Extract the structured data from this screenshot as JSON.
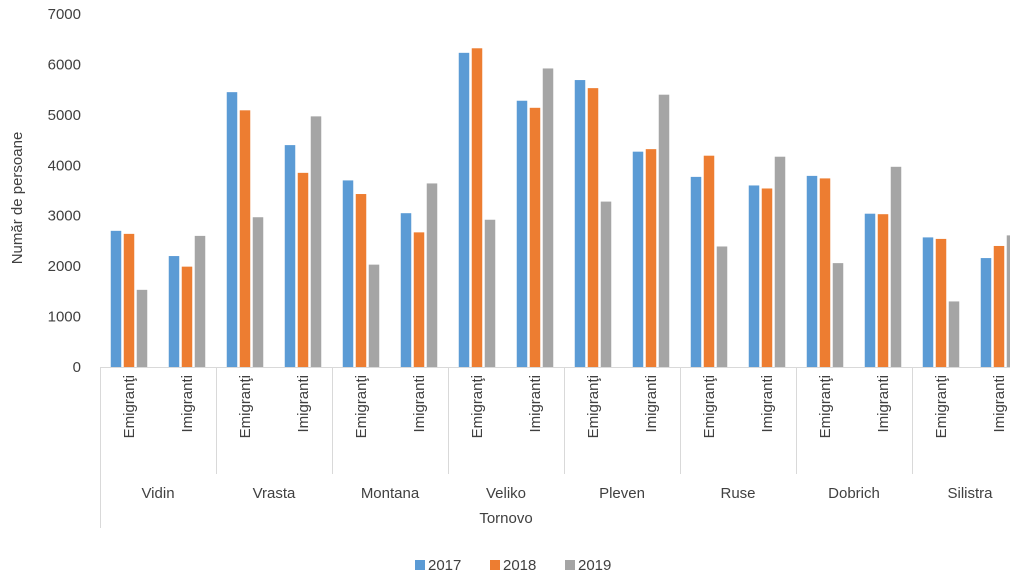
{
  "chart_data": {
    "type": "bar",
    "title": "",
    "ylabel": "Număr de persoane",
    "xlabel": "",
    "ylim": [
      0,
      7000
    ],
    "yticks": [
      0,
      1000,
      2000,
      3000,
      4000,
      5000,
      6000,
      7000
    ],
    "grid": false,
    "legend_position": "bottom",
    "groups": [
      "Vidin",
      "Vrasta",
      "Montana",
      "Veliko Tornovo",
      "Pleven",
      "Ruse",
      "Dobrich",
      "Silistra"
    ],
    "subcategories": [
      "Emigranţi",
      "Imigranti"
    ],
    "categories": [
      "Vidin Emigranţi",
      "Vidin Imigranti",
      "Vrasta Emigranţi",
      "Vrasta Imigranti",
      "Montana Emigranţi",
      "Montana Imigranti",
      "Veliko Tornovo Emigranţi",
      "Veliko Tornovo Imigranti",
      "Pleven Emigranţi",
      "Pleven Imigranti",
      "Ruse Emigranţi",
      "Ruse Imigranti",
      "Dobrich Emigranţi",
      "Dobrich Imigranti",
      "Silistra Emigranţi",
      "Silistra Imigranti"
    ],
    "series": [
      {
        "name": "2017",
        "color": "#5B9BD5",
        "values": [
          2700,
          2200,
          5450,
          4400,
          3700,
          3050,
          6230,
          5280,
          5690,
          4270,
          3770,
          3600,
          3790,
          3040,
          2570,
          2160
        ]
      },
      {
        "name": "2018",
        "color": "#ED7D31",
        "values": [
          2640,
          1990,
          5090,
          3850,
          3430,
          2670,
          6320,
          5140,
          5530,
          4320,
          4190,
          3540,
          3740,
          3030,
          2540,
          2400
        ]
      },
      {
        "name": "2019",
        "color": "#A5A5A5",
        "values": [
          1530,
          2600,
          2970,
          4970,
          2030,
          3640,
          2920,
          5920,
          3280,
          5400,
          2390,
          4170,
          2060,
          3970,
          1300,
          2610
        ]
      }
    ]
  }
}
